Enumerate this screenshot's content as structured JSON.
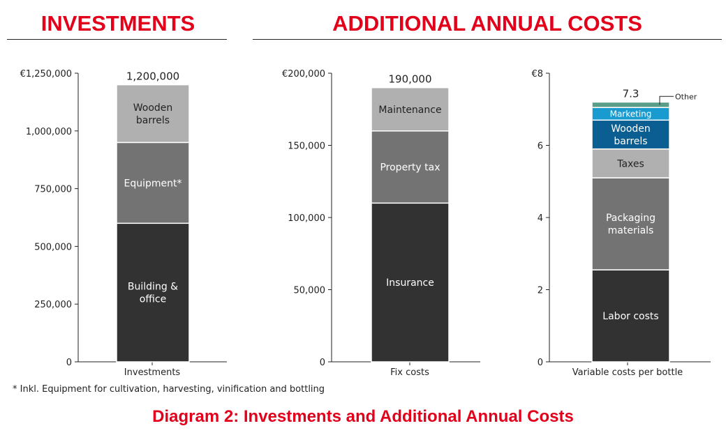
{
  "headings": {
    "investments": "INVESTMENTS",
    "additional": "ADDITIONAL ANNUAL COSTS"
  },
  "footnote": "* Inkl. Equipment for cultivation, harvesting, vinification and bottling",
  "caption": "Diagram 2: Investments and Additional Annual Costs",
  "colors": {
    "heading": "#e2001a",
    "dark": "#323232",
    "mid": "#737373",
    "light": "#b0b0b0",
    "green": "#5a9e8a",
    "lightblue": "#1a9bd0",
    "darkblue": "#0a5e91"
  },
  "chart_data": [
    {
      "type": "bar",
      "stacked": true,
      "category": "Investments",
      "total_label": "1,200,000",
      "ylim": [
        0,
        1250000
      ],
      "ticks": [
        0,
        250000,
        500000,
        750000,
        1000000,
        1250000
      ],
      "tick_labels": [
        "0",
        "250,000",
        "500,000",
        "750,000",
        "1,000,000",
        "€1,250,000"
      ],
      "series": [
        {
          "name": "Building & office",
          "label_lines": [
            "Building &",
            "office"
          ],
          "value": 600000,
          "color": "#323232",
          "text_color": "#ffffff"
        },
        {
          "name": "Equipment*",
          "label_lines": [
            "Equipment*"
          ],
          "value": 350000,
          "color": "#737373",
          "text_color": "#ffffff"
        },
        {
          "name": "Wooden barrels",
          "label_lines": [
            "Wooden",
            "barrels"
          ],
          "value": 250000,
          "color": "#b0b0b0",
          "text_color": "#222222"
        }
      ]
    },
    {
      "type": "bar",
      "stacked": true,
      "category": "Fix costs",
      "total_label": "190,000",
      "ylim": [
        0,
        200000
      ],
      "ticks": [
        0,
        50000,
        100000,
        150000,
        200000
      ],
      "tick_labels": [
        "0",
        "50,000",
        "100,000",
        "150,000",
        "€200,000"
      ],
      "series": [
        {
          "name": "Insurance",
          "label_lines": [
            "Insurance"
          ],
          "value": 110000,
          "color": "#323232",
          "text_color": "#ffffff"
        },
        {
          "name": "Property tax",
          "label_lines": [
            "Property tax"
          ],
          "value": 50000,
          "color": "#737373",
          "text_color": "#ffffff"
        },
        {
          "name": "Maintenance",
          "label_lines": [
            "Maintenance"
          ],
          "value": 30000,
          "color": "#b0b0b0",
          "text_color": "#222222"
        }
      ]
    },
    {
      "type": "bar",
      "stacked": true,
      "category": "Variable costs per bottle",
      "total_label": "7.3",
      "ylim": [
        0,
        8
      ],
      "ticks": [
        0,
        2,
        4,
        6,
        8
      ],
      "tick_labels": [
        "0",
        "2",
        "4",
        "6",
        "€8"
      ],
      "series": [
        {
          "name": "Labor costs",
          "label_lines": [
            "Labor costs"
          ],
          "value": 2.55,
          "color": "#323232",
          "text_color": "#ffffff"
        },
        {
          "name": "Packaging materials",
          "label_lines": [
            "Packaging",
            "materials"
          ],
          "value": 2.55,
          "color": "#737373",
          "text_color": "#ffffff"
        },
        {
          "name": "Taxes",
          "label_lines": [
            "Taxes"
          ],
          "value": 0.8,
          "color": "#b0b0b0",
          "text_color": "#222222"
        },
        {
          "name": "Wooden barrels",
          "label_lines": [
            "Wooden",
            "barrels"
          ],
          "value": 0.8,
          "color": "#0a5e91",
          "text_color": "#ffffff"
        },
        {
          "name": "Marketing",
          "label_lines": [
            "Marketing"
          ],
          "value": 0.35,
          "color": "#1a9bd0",
          "text_color": "#ffffff",
          "small": true
        },
        {
          "name": "Other",
          "label_lines": [
            "Other"
          ],
          "value": 0.15,
          "color": "#5a9e8a",
          "text_color": "#222222",
          "callout": true
        }
      ]
    }
  ]
}
